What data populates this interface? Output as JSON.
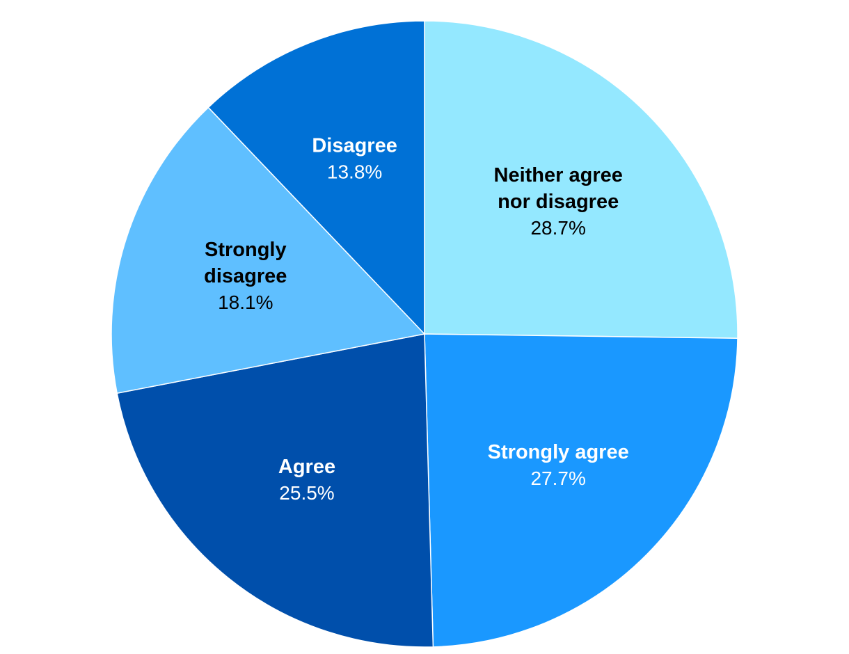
{
  "chart_data": {
    "type": "pie",
    "start_angle_deg": 0,
    "direction": "clockwise",
    "slices": [
      {
        "id": "neither",
        "label_lines": [
          "Neither agree",
          "nor disagree"
        ],
        "value": 28.7,
        "value_label": "28.7%",
        "color": "#94E8FF",
        "text_color": "#000000"
      },
      {
        "id": "strongly-agree",
        "label_lines": [
          "Strongly agree"
        ],
        "value": 27.7,
        "value_label": "27.7%",
        "color": "#1A98FF",
        "text_color": "#ffffff"
      },
      {
        "id": "agree",
        "label_lines": [
          "Agree"
        ],
        "value": 25.5,
        "value_label": "25.5%",
        "color": "#004FAB",
        "text_color": "#ffffff"
      },
      {
        "id": "strongly-disagree",
        "label_lines": [
          "Strongly",
          "disagree"
        ],
        "value": 18.1,
        "value_label": "18.1%",
        "color": "#5FBFFF",
        "text_color": "#000000"
      },
      {
        "id": "disagree",
        "label_lines": [
          "Disagree"
        ],
        "value": 13.8,
        "value_label": "13.8%",
        "color": "#0071D6",
        "text_color": "#ffffff"
      }
    ]
  }
}
